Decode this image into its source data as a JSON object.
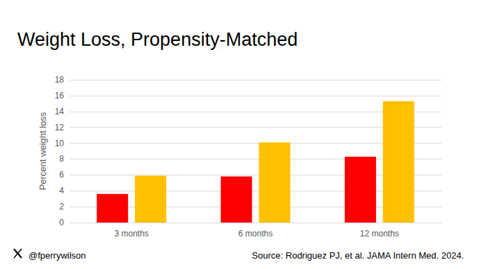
{
  "chart_data": {
    "type": "bar",
    "title": "Weight Loss, Propensity-Matched",
    "y_label": "Percent weight loss",
    "categories": [
      "3 months",
      "6 months",
      "12 months"
    ],
    "series": [
      {
        "color": "#ff0000",
        "values": [
          3.6,
          5.8,
          8.3
        ]
      },
      {
        "color": "#ffc000",
        "values": [
          5.9,
          10.1,
          15.3
        ]
      }
    ],
    "ylim": [
      0,
      18
    ],
    "yticks": [
      0,
      2,
      4,
      6,
      8,
      10,
      12,
      14,
      16,
      18
    ],
    "grid": true,
    "handle": "@fperrywilson",
    "source": "Source: Rodriguez PJ, et al. JAMA Intern Med. 2024."
  }
}
